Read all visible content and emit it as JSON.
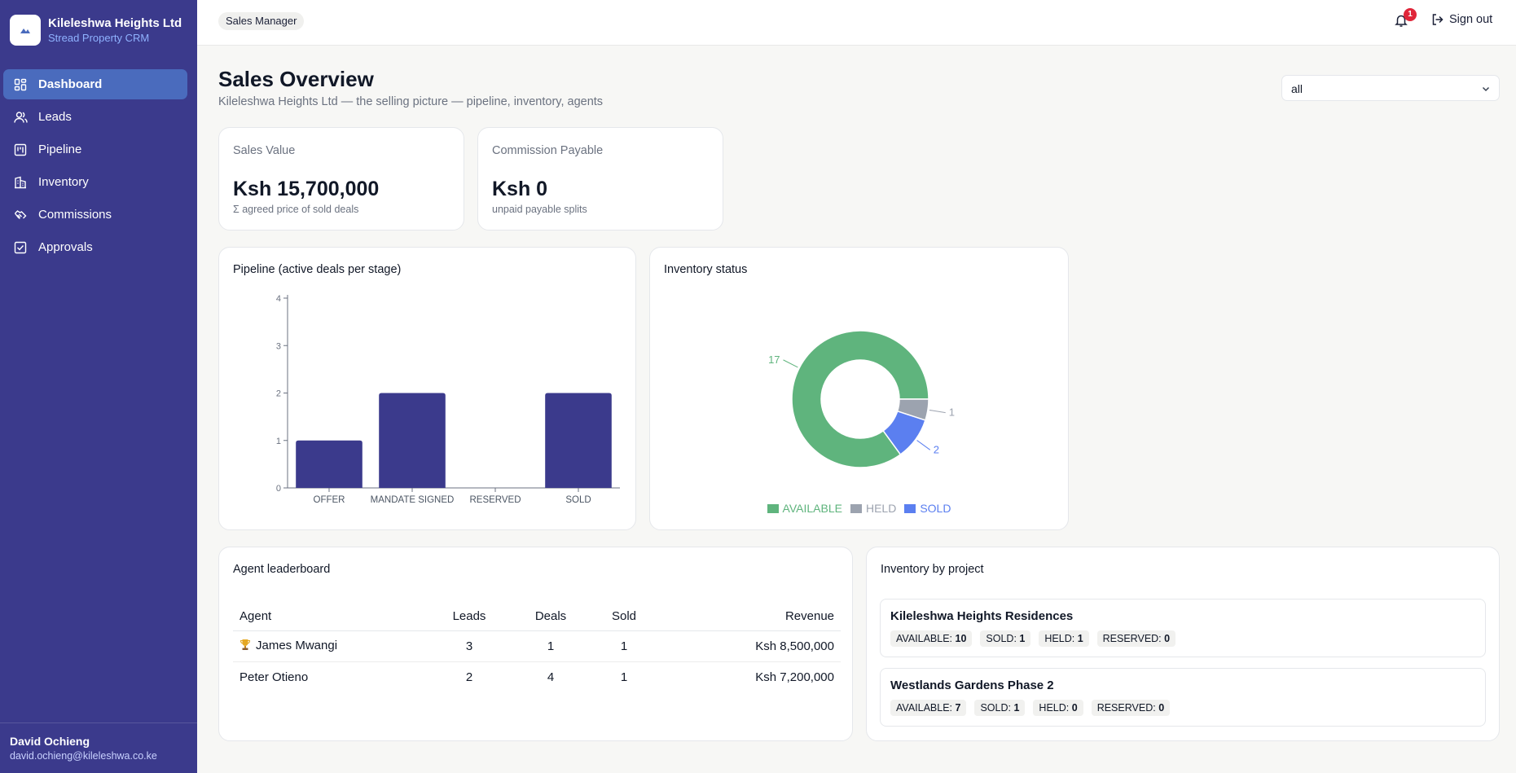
{
  "brand": {
    "name": "Kileleshwa Heights Ltd",
    "subtitle": "Stread Property CRM"
  },
  "sidebar": {
    "items": [
      {
        "label": "Dashboard",
        "icon": "dashboard-icon",
        "active": true
      },
      {
        "label": "Leads",
        "icon": "users-icon",
        "active": false
      },
      {
        "label": "Pipeline",
        "icon": "kanban-icon",
        "active": false
      },
      {
        "label": "Inventory",
        "icon": "building-icon",
        "active": false
      },
      {
        "label": "Commissions",
        "icon": "handshake-icon",
        "active": false
      },
      {
        "label": "Approvals",
        "icon": "checkbox-icon",
        "active": false
      }
    ]
  },
  "user": {
    "name": "David Ochieng",
    "email": "david.ochieng@kileleshwa.co.ke"
  },
  "topbar": {
    "role": "Sales Manager",
    "notification_count": "1",
    "signout_label": "Sign out"
  },
  "page": {
    "title": "Sales Overview",
    "subtitle": "Kileleshwa Heights Ltd — the selling picture — pipeline, inventory, agents",
    "filter_value": "all"
  },
  "kpis": [
    {
      "label": "Sales Value",
      "value": "Ksh 15,700,000",
      "note": "Σ agreed price of sold deals"
    },
    {
      "label": "Commission Payable",
      "value": "Ksh 0",
      "note": "unpaid payable splits"
    }
  ],
  "chart_data": [
    {
      "type": "bar",
      "title": "Pipeline (active deals per stage)",
      "categories": [
        "OFFER",
        "MANDATE SIGNED",
        "RESERVED",
        "SOLD"
      ],
      "values": [
        1,
        2,
        0,
        2
      ],
      "ylim": [
        0,
        4
      ],
      "yticks": [
        "0",
        "1",
        "2",
        "3",
        "4"
      ],
      "xlabel": "",
      "ylabel": "",
      "color": "#3b3a8c",
      "grid": false
    },
    {
      "type": "pie",
      "title": "Inventory status",
      "labels": [
        "AVAILABLE",
        "HELD",
        "SOLD"
      ],
      "values": [
        17,
        1,
        2
      ],
      "colors": [
        "#5fb47d",
        "#9ca3af",
        "#5b7ff0"
      ],
      "donut": true,
      "legend": "bottom"
    }
  ],
  "leaderboard": {
    "title": "Agent leaderboard",
    "headers": [
      "Agent",
      "Leads",
      "Deals",
      "Sold",
      "Revenue"
    ],
    "rows": [
      {
        "agent": "James Mwangi",
        "leads": "3",
        "deals": "1",
        "sold": "1",
        "revenue": "Ksh 8,500,000",
        "badge": "trophy-icon"
      },
      {
        "agent": "Peter Otieno",
        "leads": "2",
        "deals": "4",
        "sold": "1",
        "revenue": "Ksh 7,200,000",
        "badge": ""
      }
    ]
  },
  "projects": {
    "title": "Inventory by project",
    "items": [
      {
        "name": "Kileleshwa Heights Residences",
        "available": "10",
        "sold": "1",
        "held": "1",
        "reserved": "0"
      },
      {
        "name": "Westlands Gardens Phase 2",
        "available": "7",
        "sold": "1",
        "held": "0",
        "reserved": "0"
      }
    ],
    "labels": {
      "available": "AVAILABLE:",
      "sold": "SOLD:",
      "held": "HELD:",
      "reserved": "RESERVED:"
    }
  }
}
